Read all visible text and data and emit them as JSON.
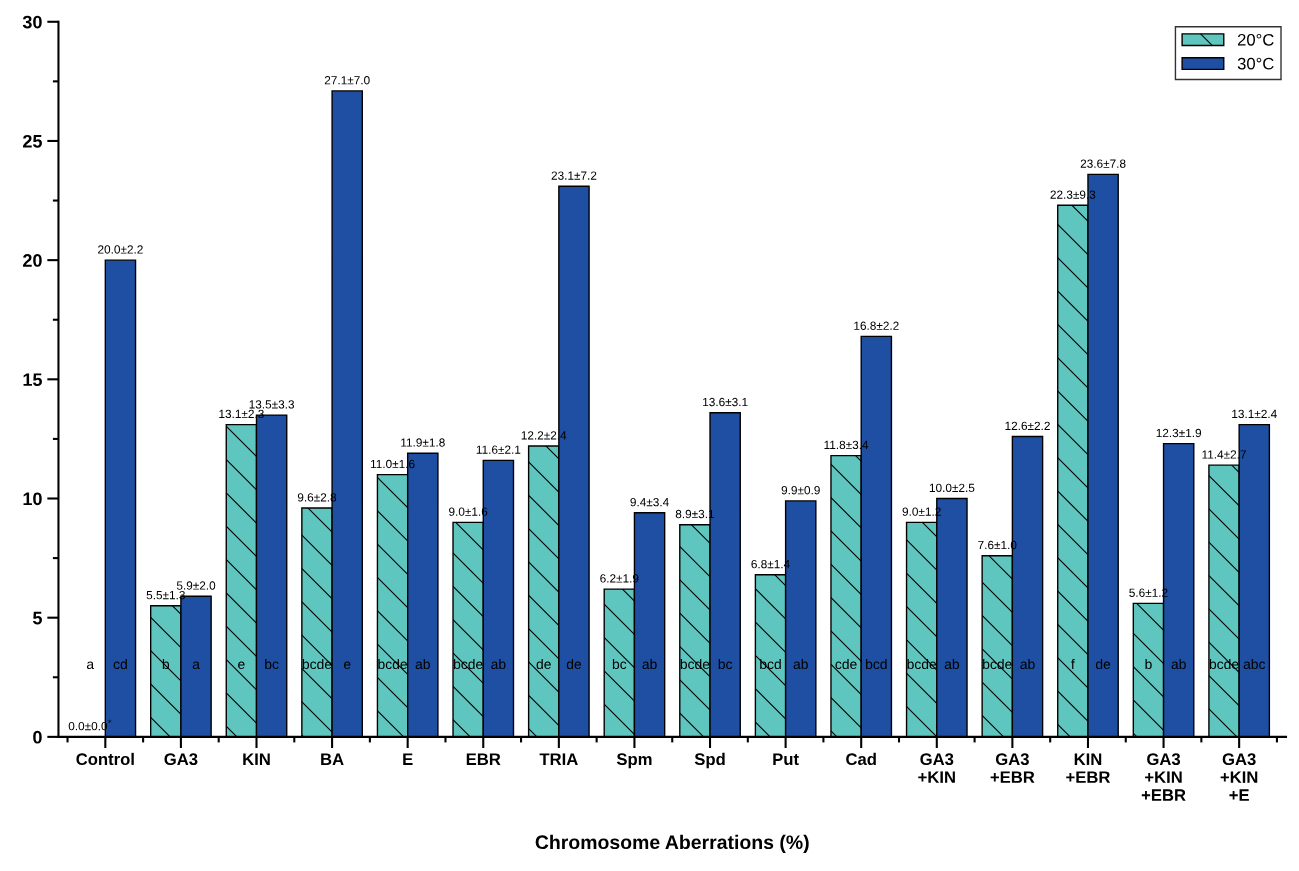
{
  "chart_data": {
    "type": "bar",
    "xlabel": "Chromosome Aberrations (%)",
    "categories": [
      "Control",
      "GA3",
      "KIN",
      "BA",
      "E",
      "EBR",
      "TRIA",
      "Spm",
      "Spd",
      "Put",
      "Cad",
      "GA3\n+KIN",
      "GA3\n+EBR",
      "KIN\n+EBR",
      "GA3\n+KIN\n+EBR",
      "GA3\n+KIN\n+E"
    ],
    "series": [
      {
        "name": "20°C",
        "color": "#5ec6bf",
        "values": [
          0.0,
          5.5,
          13.1,
          9.6,
          11.0,
          9.0,
          12.2,
          6.2,
          8.9,
          6.8,
          11.8,
          9.0,
          7.6,
          22.3,
          5.6,
          11.4
        ],
        "value_labels": [
          "0.0±0.0$^{*}$",
          "5.5±1.3",
          "13.1±2.3",
          "9.6±2.8",
          "11.0±1.6",
          "9.0±1.6",
          "12.2±2.4",
          "6.2±1.9",
          "8.9±3.1",
          "6.8±1.4",
          "11.8±3.4",
          "9.0±1.2",
          "7.6±1.0",
          "22.3±9.3",
          "5.6±1.2",
          "11.4±2.7"
        ]
      },
      {
        "name": "30°C",
        "color": "#1f4fa3",
        "values": [
          20.0,
          5.9,
          13.5,
          27.1,
          11.9,
          11.6,
          23.1,
          9.4,
          13.6,
          9.9,
          16.8,
          10.0,
          12.6,
          23.6,
          12.3,
          13.1
        ],
        "value_labels": [
          "20.0±2.2",
          "5.9±2.0",
          "13.5±3.3",
          "27.1±7.0",
          "11.9±1.8",
          "11.6±2.1",
          "23.1±7.2",
          "9.4±3.4",
          "13.6±3.1",
          "9.9±0.9",
          "16.8±2.2",
          "10.0±2.5",
          "12.6±2.2",
          "23.6±7.8",
          "12.3±1.9",
          "13.1±2.4"
        ]
      }
    ],
    "annotations": [
      "a",
      "cd",
      "b",
      "a",
      "e",
      "bc",
      "bcde",
      "e",
      "bcde",
      "ab",
      "bcde",
      "ab",
      "de",
      "de",
      "bc",
      "ab",
      "bcde",
      "bc",
      "bcd",
      "ab",
      "cde",
      "bcd",
      "bcde",
      "ab",
      "bcde",
      "ab",
      "f",
      "de",
      "b",
      "ab",
      "bcde",
      "abc"
    ],
    "ylim": [
      0,
      30
    ],
    "yticks": [
      0,
      5,
      10,
      15,
      20,
      25,
      30
    ],
    "grid": false,
    "legend": "top right"
  }
}
